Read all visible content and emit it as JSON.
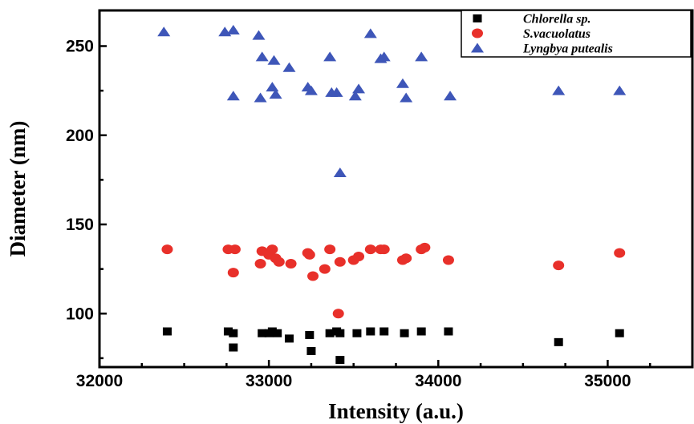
{
  "chart_data": {
    "type": "scatter",
    "title": "",
    "xlabel": "Intensity (a.u.)",
    "ylabel": "Diameter (nm)",
    "xlim": [
      32000,
      35500
    ],
    "ylim": [
      70,
      270
    ],
    "xticks": [
      32000,
      33000,
      34000,
      35000
    ],
    "yticks": [
      100,
      150,
      200,
      250
    ],
    "grid": false,
    "legend_position": "top-right",
    "series": [
      {
        "name": "Chlorella sp.",
        "marker": "square",
        "color": "#000000",
        "points": [
          [
            32400,
            90
          ],
          [
            32760,
            90
          ],
          [
            32790,
            81
          ],
          [
            32790,
            89
          ],
          [
            32960,
            89
          ],
          [
            33000,
            89
          ],
          [
            33020,
            90
          ],
          [
            33050,
            89
          ],
          [
            33120,
            86
          ],
          [
            33240,
            88
          ],
          [
            33250,
            79
          ],
          [
            33360,
            89
          ],
          [
            33400,
            90
          ],
          [
            33420,
            74
          ],
          [
            33420,
            89
          ],
          [
            33520,
            89
          ],
          [
            33600,
            90
          ],
          [
            33680,
            90
          ],
          [
            33800,
            89
          ],
          [
            33900,
            90
          ],
          [
            34060,
            90
          ],
          [
            34710,
            84
          ],
          [
            35070,
            89
          ]
        ]
      },
      {
        "name": "S.vacuolatus",
        "marker": "circle",
        "color": "#e8302a",
        "points": [
          [
            32400,
            136
          ],
          [
            32760,
            136
          ],
          [
            32790,
            123
          ],
          [
            32800,
            136
          ],
          [
            32950,
            128
          ],
          [
            32960,
            135
          ],
          [
            33000,
            133
          ],
          [
            33020,
            136
          ],
          [
            33040,
            131
          ],
          [
            33060,
            129
          ],
          [
            33130,
            128
          ],
          [
            33230,
            134
          ],
          [
            33240,
            133
          ],
          [
            33260,
            121
          ],
          [
            33330,
            125
          ],
          [
            33360,
            136
          ],
          [
            33410,
            100
          ],
          [
            33420,
            129
          ],
          [
            33500,
            130
          ],
          [
            33530,
            132
          ],
          [
            33600,
            136
          ],
          [
            33660,
            136
          ],
          [
            33680,
            136
          ],
          [
            33790,
            130
          ],
          [
            33810,
            131
          ],
          [
            33900,
            136
          ],
          [
            33920,
            137
          ],
          [
            34060,
            130
          ],
          [
            34710,
            127
          ],
          [
            35070,
            134
          ]
        ]
      },
      {
        "name": "Lyngbya putealis",
        "marker": "triangle",
        "color": "#3e56b8",
        "points": [
          [
            32380,
            258
          ],
          [
            32740,
            258
          ],
          [
            32790,
            259
          ],
          [
            32790,
            222
          ],
          [
            32940,
            256
          ],
          [
            32950,
            221
          ],
          [
            32960,
            244
          ],
          [
            33020,
            227
          ],
          [
            33030,
            242
          ],
          [
            33040,
            223
          ],
          [
            33120,
            238
          ],
          [
            33230,
            227
          ],
          [
            33250,
            225
          ],
          [
            33360,
            244
          ],
          [
            33370,
            224
          ],
          [
            33400,
            224
          ],
          [
            33420,
            179
          ],
          [
            33510,
            222
          ],
          [
            33530,
            226
          ],
          [
            33600,
            257
          ],
          [
            33660,
            243
          ],
          [
            33680,
            244
          ],
          [
            33790,
            229
          ],
          [
            33810,
            221
          ],
          [
            33900,
            244
          ],
          [
            34070,
            222
          ],
          [
            34710,
            225
          ],
          [
            35070,
            225
          ]
        ]
      }
    ]
  }
}
